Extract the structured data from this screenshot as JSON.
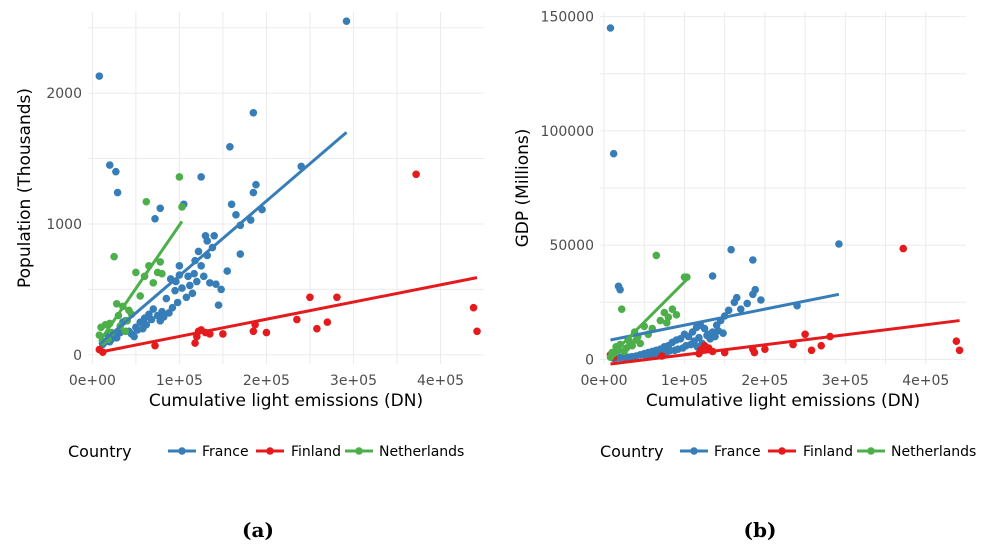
{
  "colors": {
    "France": "#377eb8",
    "Finland": "#e41a1c",
    "Netherlands": "#4daf4a"
  },
  "chart_data": [
    {
      "type": "scatter",
      "caption": "(a)",
      "xlabel": "Cumulative light emissions (DN)",
      "ylabel": "Population (Thousands)",
      "xlim": [
        -5000,
        450000
      ],
      "ylim": [
        -70,
        2620
      ],
      "xticks": [
        0,
        100000,
        200000,
        300000,
        400000
      ],
      "xtick_labels": [
        "0e+00",
        "1e+05",
        "2e+05",
        "3e+05",
        "4e+05"
      ],
      "yticks": [
        0,
        1000,
        2000
      ],
      "ytick_labels": [
        "0",
        "1000",
        "2000"
      ],
      "legend_title": "Country",
      "legend_position": "bottom",
      "series": [
        {
          "name": "France",
          "points": [
            [
              8000,
              2130
            ],
            [
              20000,
              1450
            ],
            [
              27000,
              1400
            ],
            [
              29000,
              1240
            ],
            [
              105000,
              1150
            ],
            [
              78000,
              1120
            ],
            [
              72000,
              1040
            ],
            [
              125000,
              1360
            ],
            [
              185000,
              1850
            ],
            [
              158000,
              1590
            ],
            [
              292000,
              2550
            ],
            [
              240000,
              1440
            ],
            [
              188000,
              1300
            ],
            [
              185000,
              1240
            ],
            [
              195000,
              1110
            ],
            [
              182000,
              1030
            ],
            [
              160000,
              1150
            ],
            [
              165000,
              1070
            ],
            [
              170000,
              990
            ],
            [
              130000,
              910
            ],
            [
              140000,
              910
            ],
            [
              122000,
              790
            ],
            [
              118000,
              720
            ],
            [
              155000,
              640
            ],
            [
              170000,
              770
            ],
            [
              145000,
              380
            ],
            [
              135000,
              550
            ],
            [
              128000,
              600
            ],
            [
              120000,
              560
            ],
            [
              110000,
              600
            ],
            [
              100000,
              610
            ],
            [
              95000,
              490
            ],
            [
              90000,
              580
            ],
            [
              85000,
              430
            ],
            [
              80000,
              330
            ],
            [
              75000,
              300
            ],
            [
              70000,
              350
            ],
            [
              65000,
              310
            ],
            [
              60000,
              280
            ],
            [
              55000,
              250
            ],
            [
              50000,
              210
            ],
            [
              45000,
              160
            ],
            [
              42000,
              180
            ],
            [
              38000,
              260
            ],
            [
              35000,
              250
            ],
            [
              32000,
              170
            ],
            [
              28000,
              130
            ],
            [
              25000,
              150
            ],
            [
              22000,
              120
            ],
            [
              20000,
              100
            ],
            [
              18000,
              150
            ],
            [
              15000,
              100
            ],
            [
              12000,
              80
            ],
            [
              103000,
              510
            ],
            [
              112000,
              530
            ],
            [
              117000,
              620
            ],
            [
              125000,
              680
            ],
            [
              132000,
              760
            ],
            [
              138000,
              820
            ],
            [
              108000,
              440
            ],
            [
              98000,
              400
            ],
            [
              92000,
              360
            ],
            [
              88000,
              320
            ],
            [
              82000,
              290
            ],
            [
              78000,
              260
            ],
            [
              68000,
              270
            ],
            [
              62000,
              230
            ],
            [
              58000,
              200
            ],
            [
              52000,
              190
            ],
            [
              48000,
              140
            ],
            [
              132000,
              870
            ],
            [
              142000,
              540
            ],
            [
              148000,
              500
            ],
            [
              100000,
              680
            ],
            [
              96000,
              560
            ],
            [
              115000,
              470
            ]
          ]
        },
        {
          "name": "Finland",
          "points": [
            [
              8000,
              40
            ],
            [
              12000,
              20
            ],
            [
              72000,
              70
            ],
            [
              118000,
              90
            ],
            [
              120000,
              140
            ],
            [
              122000,
              180
            ],
            [
              125000,
              190
            ],
            [
              130000,
              170
            ],
            [
              135000,
              160
            ],
            [
              150000,
              160
            ],
            [
              185000,
              180
            ],
            [
              187000,
              230
            ],
            [
              200000,
              170
            ],
            [
              235000,
              270
            ],
            [
              250000,
              440
            ],
            [
              258000,
              200
            ],
            [
              270000,
              250
            ],
            [
              281000,
              440
            ],
            [
              372000,
              1380
            ],
            [
              438000,
              360
            ],
            [
              442000,
              180
            ]
          ]
        },
        {
          "name": "Netherlands",
          "points": [
            [
              8000,
              150
            ],
            [
              10000,
              210
            ],
            [
              12000,
              100
            ],
            [
              15000,
              230
            ],
            [
              18000,
              120
            ],
            [
              20000,
              240
            ],
            [
              22000,
              170
            ],
            [
              25000,
              750
            ],
            [
              28000,
              390
            ],
            [
              30000,
              300
            ],
            [
              32000,
              220
            ],
            [
              35000,
              370
            ],
            [
              38000,
              180
            ],
            [
              40000,
              260
            ],
            [
              42000,
              340
            ],
            [
              45000,
              310
            ],
            [
              50000,
              630
            ],
            [
              55000,
              450
            ],
            [
              60000,
              600
            ],
            [
              62000,
              1170
            ],
            [
              65000,
              680
            ],
            [
              70000,
              550
            ],
            [
              75000,
              630
            ],
            [
              78000,
              710
            ],
            [
              80000,
              620
            ],
            [
              100000,
              1360
            ],
            [
              103000,
              1130
            ]
          ]
        }
      ],
      "trend_lines": [
        {
          "name": "France",
          "from": [
            8000,
            80
          ],
          "to": [
            292000,
            1700
          ]
        },
        {
          "name": "Finland",
          "from": [
            8000,
            20
          ],
          "to": [
            442000,
            590
          ]
        },
        {
          "name": "Netherlands",
          "from": [
            8000,
            100
          ],
          "to": [
            103000,
            1020
          ]
        }
      ]
    },
    {
      "type": "scatter",
      "caption": "(b)",
      "xlabel": "Cumulative light emissions (DN)",
      "ylabel": "GDP (Millions)",
      "xlim": [
        -5000,
        450000
      ],
      "ylim": [
        -2000,
        152000
      ],
      "xticks": [
        0,
        100000,
        200000,
        300000,
        400000
      ],
      "xtick_labels": [
        "0e+00",
        "1e+05",
        "2e+05",
        "3e+05",
        "4e+05"
      ],
      "yticks": [
        0,
        50000,
        100000,
        150000
      ],
      "ytick_labels": [
        "0",
        "50000",
        "100000",
        "150000"
      ],
      "legend_title": "Country",
      "legend_position": "bottom",
      "series": [
        {
          "name": "France",
          "points": [
            [
              8000,
              145000
            ],
            [
              12000,
              90000
            ],
            [
              18000,
              32000
            ],
            [
              20000,
              30500
            ],
            [
              292000,
              50500
            ],
            [
              158000,
              48000
            ],
            [
              185000,
              43500
            ],
            [
              135000,
              36500
            ],
            [
              188000,
              30500
            ],
            [
              185000,
              28500
            ],
            [
              195000,
              26000
            ],
            [
              240000,
              23500
            ],
            [
              165000,
              27000
            ],
            [
              162000,
              25000
            ],
            [
              178000,
              24500
            ],
            [
              170000,
              22000
            ],
            [
              155000,
              21500
            ],
            [
              150000,
              19000
            ],
            [
              145000,
              17000
            ],
            [
              140000,
              15000
            ],
            [
              135000,
              12000
            ],
            [
              130000,
              11000
            ],
            [
              125000,
              13500
            ],
            [
              120000,
              15000
            ],
            [
              115000,
              14000
            ],
            [
              110000,
              12000
            ],
            [
              105000,
              10000
            ],
            [
              100000,
              11000
            ],
            [
              95000,
              9000
            ],
            [
              90000,
              8500
            ],
            [
              85000,
              7500
            ],
            [
              80000,
              6000
            ],
            [
              75000,
              5500
            ],
            [
              70000,
              4500
            ],
            [
              65000,
              4000
            ],
            [
              60000,
              3500
            ],
            [
              55000,
              3000
            ],
            [
              50000,
              2500
            ],
            [
              45000,
              2000
            ],
            [
              40000,
              1500
            ],
            [
              35000,
              1200
            ],
            [
              30000,
              1000
            ],
            [
              25000,
              900
            ],
            [
              20000,
              800
            ],
            [
              15000,
              600
            ],
            [
              12000,
              500
            ],
            [
              118000,
              9500
            ],
            [
              112000,
              8000
            ],
            [
              108000,
              6500
            ],
            [
              102000,
              6000
            ],
            [
              98000,
              5000
            ],
            [
              92000,
              4500
            ],
            [
              88000,
              4000
            ],
            [
              82000,
              3800
            ],
            [
              78000,
              3200
            ],
            [
              72000,
              2800
            ],
            [
              68000,
              2400
            ],
            [
              62000,
              2000
            ],
            [
              58000,
              1800
            ],
            [
              52000,
              1500
            ],
            [
              128000,
              10500
            ],
            [
              132000,
              9000
            ],
            [
              138000,
              10000
            ],
            [
              142000,
              12500
            ],
            [
              148000,
              11500
            ],
            [
              122000,
              7000
            ],
            [
              116000,
              5500
            ]
          ]
        },
        {
          "name": "Finland",
          "points": [
            [
              8000,
              2000
            ],
            [
              10000,
              1500
            ],
            [
              12000,
              1000
            ],
            [
              72000,
              1500
            ],
            [
              118000,
              2500
            ],
            [
              120000,
              4000
            ],
            [
              122000,
              4500
            ],
            [
              125000,
              6000
            ],
            [
              130000,
              5000
            ],
            [
              135000,
              3500
            ],
            [
              150000,
              3000
            ],
            [
              185000,
              4500
            ],
            [
              187000,
              3000
            ],
            [
              200000,
              4500
            ],
            [
              235000,
              6500
            ],
            [
              250000,
              11000
            ],
            [
              258000,
              4000
            ],
            [
              270000,
              6000
            ],
            [
              281000,
              10000
            ],
            [
              372000,
              48500
            ],
            [
              438000,
              8000
            ],
            [
              442000,
              4000
            ]
          ]
        },
        {
          "name": "Netherlands",
          "points": [
            [
              8000,
              1000
            ],
            [
              10000,
              3000
            ],
            [
              12000,
              2500
            ],
            [
              15000,
              5500
            ],
            [
              18000,
              4000
            ],
            [
              20000,
              6500
            ],
            [
              22000,
              22000
            ],
            [
              25000,
              3500
            ],
            [
              28000,
              5000
            ],
            [
              30000,
              9000
            ],
            [
              32000,
              7500
            ],
            [
              35000,
              6000
            ],
            [
              38000,
              12000
            ],
            [
              40000,
              8500
            ],
            [
              42000,
              10000
            ],
            [
              45000,
              7000
            ],
            [
              50000,
              14500
            ],
            [
              55000,
              11000
            ],
            [
              60000,
              13500
            ],
            [
              65000,
              45500
            ],
            [
              70000,
              17000
            ],
            [
              75000,
              20500
            ],
            [
              78000,
              16000
            ],
            [
              80000,
              18500
            ],
            [
              85000,
              22000
            ],
            [
              90000,
              19500
            ],
            [
              100000,
              36000
            ],
            [
              103000,
              36000
            ]
          ]
        }
      ],
      "trend_lines": [
        {
          "name": "France",
          "from": [
            8000,
            8500
          ],
          "to": [
            292000,
            28500
          ]
        },
        {
          "name": "Finland",
          "from": [
            8000,
            -2000
          ],
          "to": [
            442000,
            17000
          ]
        },
        {
          "name": "Netherlands",
          "from": [
            8000,
            1500
          ],
          "to": [
            103000,
            35000
          ]
        }
      ]
    }
  ]
}
